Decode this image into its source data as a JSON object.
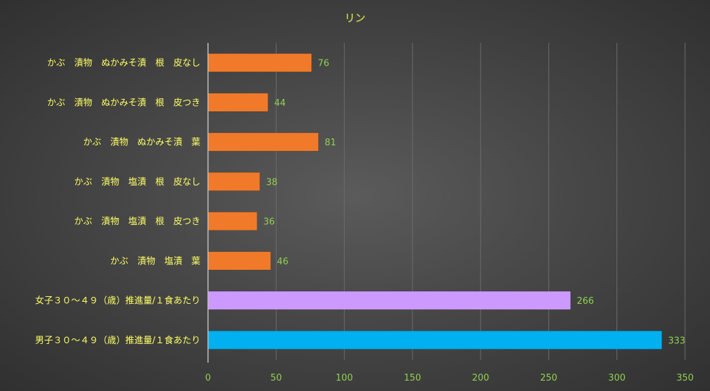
{
  "chart_data": {
    "type": "bar",
    "orientation": "horizontal",
    "title": "リン",
    "xlabel": "",
    "ylabel": "",
    "xlim": [
      0,
      350
    ],
    "x_ticks": [
      0,
      50,
      100,
      150,
      200,
      250,
      300,
      350
    ],
    "grid": true,
    "legend": "none",
    "categories": [
      "かぶ　漬物　ぬかみそ漬　根　皮なし",
      "かぶ　漬物　ぬかみそ漬　根　皮つき",
      "かぶ　漬物　ぬかみそ漬　葉",
      "かぶ　漬物　塩漬　根　皮なし",
      "かぶ　漬物　塩漬　根　皮つき",
      "かぶ　漬物　塩漬　葉",
      "女子３０～４９（歳）推進量/１食あたり",
      "男子３０～４９（歳）推進量/１食あたり"
    ],
    "values": [
      76,
      44,
      81,
      38,
      36,
      46,
      266,
      333
    ],
    "colors": [
      "#f07a2a",
      "#f07a2a",
      "#f07a2a",
      "#f07a2a",
      "#f07a2a",
      "#f07a2a",
      "#cc99ff",
      "#00b0f0"
    ],
    "title_color": "#b8c24a",
    "label_color": "#ffff66",
    "tick_color": "#92d050"
  }
}
